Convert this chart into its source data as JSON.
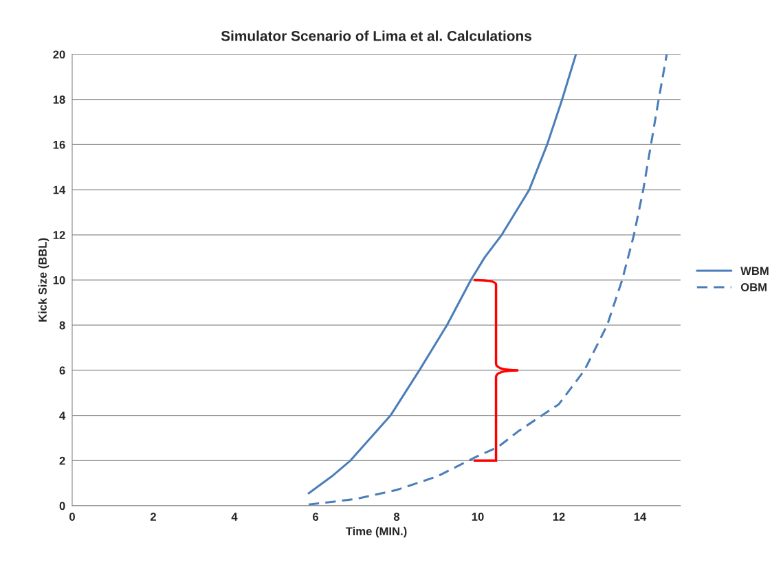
{
  "chart_data": {
    "type": "line",
    "title": "Simulator Scenario of Lima et al. Calculations",
    "xlabel": "Time (MIN.)",
    "ylabel": "Kick Size (BBL)",
    "xlim": [
      0,
      15
    ],
    "xticks": [
      0,
      2,
      4,
      6,
      8,
      10,
      12,
      14
    ],
    "ylim": [
      0,
      20
    ],
    "yticks": [
      0,
      2,
      4,
      6,
      8,
      10,
      12,
      14,
      16,
      18,
      20
    ],
    "grid": "y",
    "legend": "right",
    "marker": "none",
    "series": [
      {
        "name": "WBM",
        "color": "#4a7ebb",
        "line_style": "solid",
        "x": [
          5.83,
          6.4,
          6.86,
          7.85,
          8.56,
          9.24,
          9.83,
          10.17,
          10.59,
          11.27,
          11.71,
          12.08,
          12.42
        ],
        "values": [
          0.55,
          1.3,
          2,
          4,
          6,
          8,
          10,
          11,
          12,
          14,
          16,
          18,
          20
        ]
      },
      {
        "name": "OBM",
        "color": "#4a7ebb",
        "line_style": "dashed",
        "x": [
          5.83,
          7,
          8,
          9,
          10,
          10.5,
          11,
          12,
          12.63,
          13.19,
          13.56,
          13.85,
          14.08,
          14.27,
          14.46,
          14.66
        ],
        "values": [
          0.05,
          0.3,
          0.7,
          1.3,
          2.2,
          2.6,
          3.3,
          4.5,
          6,
          8,
          10,
          12,
          14,
          16,
          18,
          20
        ]
      }
    ]
  }
}
